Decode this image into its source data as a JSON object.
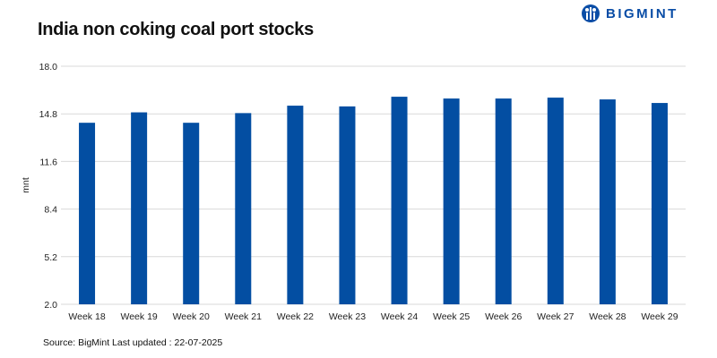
{
  "header": {
    "title": "India non coking coal port stocks",
    "logo_text": "BIGMINT"
  },
  "footer": {
    "source": "Source: BigMint Last updated : 22-07-2025"
  },
  "colors": {
    "bar": "#034ea2",
    "grid": "#d9d9d9",
    "brand": "#0a4da6"
  },
  "chart_data": {
    "type": "bar",
    "title": "India non coking coal port stocks",
    "xlabel": "",
    "ylabel": "mnt",
    "ylim": [
      2.0,
      18.0
    ],
    "yticks": [
      "2.0",
      "5.2",
      "8.4",
      "11.6",
      "14.8",
      "18.0"
    ],
    "grid": true,
    "categories": [
      "Week 18",
      "Week 19",
      "Week 20",
      "Week 21",
      "Week 22",
      "Week 23",
      "Week 24",
      "Week 25",
      "Week 26",
      "Week 27",
      "Week 28",
      "Week 29"
    ],
    "values": [
      14.2,
      14.9,
      14.2,
      14.85,
      15.35,
      15.3,
      15.95,
      15.83,
      15.83,
      15.89,
      15.77,
      15.53
    ]
  }
}
